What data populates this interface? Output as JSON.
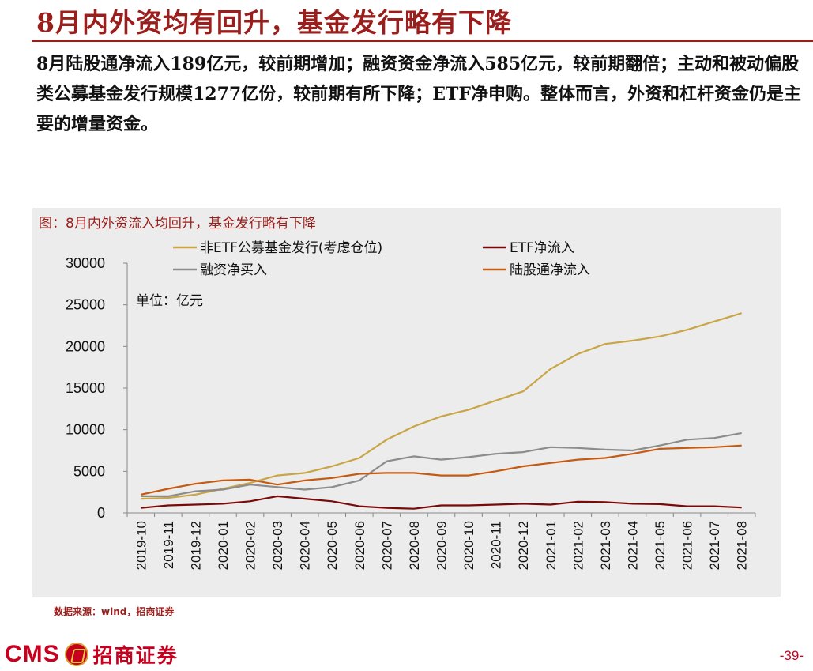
{
  "header": {
    "title": "8月内外资均有回升，基金发行略有下降"
  },
  "summary": {
    "text": "8月陆股通净流入189亿元，较前期增加；融资资金净流入585亿元，较前期翻倍；主动和被动偏股类公募基金发行规模1277亿份，较前期有所下降；ETF净申购。整体而言，外资和杠杆资金仍是主要的增量资金。"
  },
  "figure": {
    "caption": "图：8月内外资流入均回升，基金发行略有下降",
    "unit": "单位：亿元",
    "source": "数据来源：wind，招商证券"
  },
  "footer": {
    "brand_latin": "CMS",
    "brand_name": "招商证券",
    "logo_icon": "cms-logo-icon",
    "page_number": "-39-"
  },
  "chart_data": {
    "type": "line",
    "title": "8月内外资流入均回升，基金发行略有下降",
    "xlabel": "",
    "ylabel": "单位：亿元",
    "ylim": [
      0,
      30000
    ],
    "yticks": [
      0,
      5000,
      10000,
      15000,
      20000,
      25000,
      30000
    ],
    "grid": false,
    "legend_position": "top",
    "categories": [
      "2019-10",
      "2019-11",
      "2019-12",
      "2020-01",
      "2020-02",
      "2020-03",
      "2020-04",
      "2020-05",
      "2020-06",
      "2020-07",
      "2020-08",
      "2020-09",
      "2020-10",
      "2020-11",
      "2020-12",
      "2021-01",
      "2021-02",
      "2021-03",
      "2021-04",
      "2021-05",
      "2021-06",
      "2021-07",
      "2021-08"
    ],
    "series": [
      {
        "name": "非ETF公募基金发行(考虑仓位)",
        "color": "#c9a545",
        "values": [
          1700,
          1800,
          2200,
          2900,
          3600,
          4500,
          4800,
          5600,
          6600,
          8800,
          10400,
          11600,
          12400,
          13500,
          14600,
          17300,
          19100,
          20300,
          20700,
          21200,
          22000,
          23000,
          24000
        ]
      },
      {
        "name": "ETF净流入",
        "color": "#7a0a0a",
        "values": [
          600,
          900,
          1000,
          1100,
          1400,
          2000,
          1700,
          1400,
          800,
          600,
          500,
          900,
          900,
          1000,
          1100,
          1000,
          1350,
          1300,
          1100,
          1050,
          800,
          800,
          650
        ]
      },
      {
        "name": "融资净买入",
        "color": "#8c8c8c",
        "values": [
          2000,
          2000,
          2600,
          2800,
          3400,
          3100,
          2800,
          3100,
          3900,
          6200,
          6800,
          6400,
          6700,
          7100,
          7300,
          7900,
          7800,
          7600,
          7500,
          8100,
          8800,
          9000,
          9600
        ]
      },
      {
        "name": "陆股通净流入",
        "color": "#c55a11",
        "values": [
          2200,
          2900,
          3500,
          3900,
          4000,
          3400,
          3900,
          4200,
          4700,
          4800,
          4800,
          4500,
          4500,
          5000,
          5600,
          6000,
          6400,
          6600,
          7100,
          7700,
          7800,
          7900,
          8100
        ]
      }
    ]
  }
}
